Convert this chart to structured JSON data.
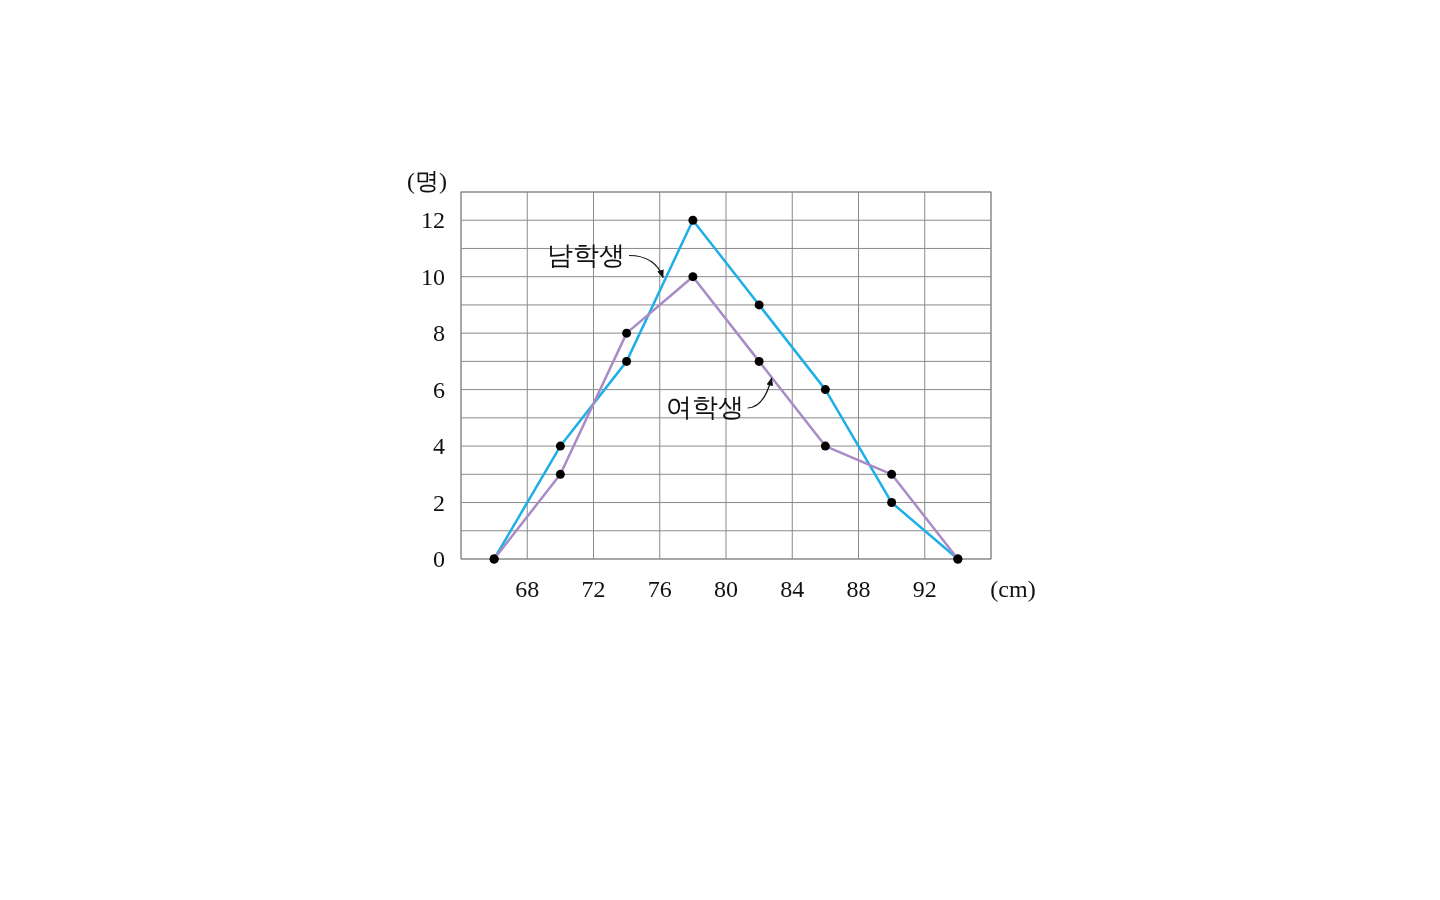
{
  "chart_data": {
    "type": "line",
    "xlabel": "(cm)",
    "ylabel": "(명)",
    "x": [
      66,
      70,
      74,
      78,
      82,
      86,
      90,
      94
    ],
    "xlim": [
      64,
      96
    ],
    "ylim": [
      0,
      13
    ],
    "xticks": [
      {
        "value": 64,
        "label": null
      },
      68,
      72,
      76,
      80,
      84,
      88,
      92,
      {
        "value": 96,
        "label": null
      }
    ],
    "yticks": [
      {
        "value": 0,
        "label": "0"
      },
      {
        "value": 1,
        "label": null
      },
      2,
      {
        "value": 3,
        "label": null
      },
      4,
      {
        "value": 5,
        "label": null
      },
      6,
      {
        "value": 7,
        "label": null
      },
      8,
      {
        "value": 9,
        "label": null
      },
      10,
      {
        "value": 11,
        "label": null
      },
      12,
      {
        "value": 13,
        "label": null
      }
    ],
    "grid": true,
    "marker": "circle",
    "line_style": "solid",
    "series": [
      {
        "name": "남학생",
        "color": "#1eaee8",
        "values": [
          0,
          4,
          7,
          12,
          9,
          6,
          2,
          0
        ]
      },
      {
        "name": "여학생",
        "color": "#a98bc6",
        "values": [
          0,
          3,
          8,
          10,
          7,
          4,
          3,
          0
        ]
      }
    ]
  }
}
